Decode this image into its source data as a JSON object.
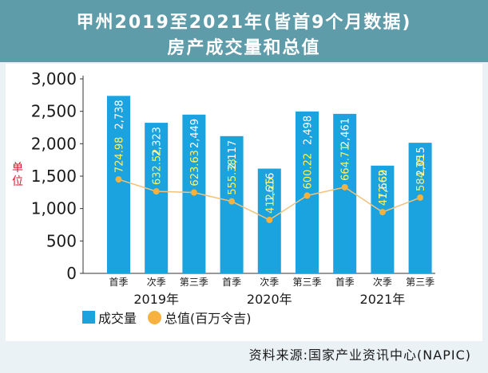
{
  "title": {
    "line1": "甲州2019至2021年(皆首9个月数据)",
    "line2": "房产成交量和总值"
  },
  "unit_label": "单位",
  "legend": {
    "volume": "成交量",
    "value": "总值(百万令吉)"
  },
  "source": "资料来源:国家产业资讯中心(NAPIC)",
  "chart_data": {
    "type": "bar",
    "categories": [
      "首季",
      "次季",
      "第三季",
      "首季",
      "次季",
      "第三季",
      "首季",
      "次季",
      "第三季"
    ],
    "year_groups": [
      "2019年",
      "2020年",
      "2021年"
    ],
    "yticks": [
      "3,000",
      "2,500",
      "2,000",
      "1,500",
      "1,000",
      "500",
      "0"
    ],
    "ylim": [
      0,
      3000
    ],
    "series": [
      {
        "name": "成交量",
        "values": [
          2738,
          2323,
          2449,
          2117,
          1616,
          2498,
          2461,
          1662,
          2015
        ],
        "labels": [
          "2,738",
          "2,323",
          "2,449",
          "2,117",
          "1,616",
          "2,498",
          "2,461",
          "1,662",
          "2,015"
        ],
        "color": "#1aa3de"
      },
      {
        "name": "总值(百万令吉)",
        "values": [
          724.98,
          632.52,
          623.63,
          555.38,
          412.25,
          600.22,
          664.71,
          472.69,
          584.35
        ],
        "labels": [
          "724.98",
          "632.52",
          "623.63",
          "555.38",
          "412.25",
          "600.22",
          "664.71",
          "472.69",
          "584.35"
        ],
        "color": "#f6b13e",
        "line_color": "#f2c27b"
      }
    ]
  }
}
